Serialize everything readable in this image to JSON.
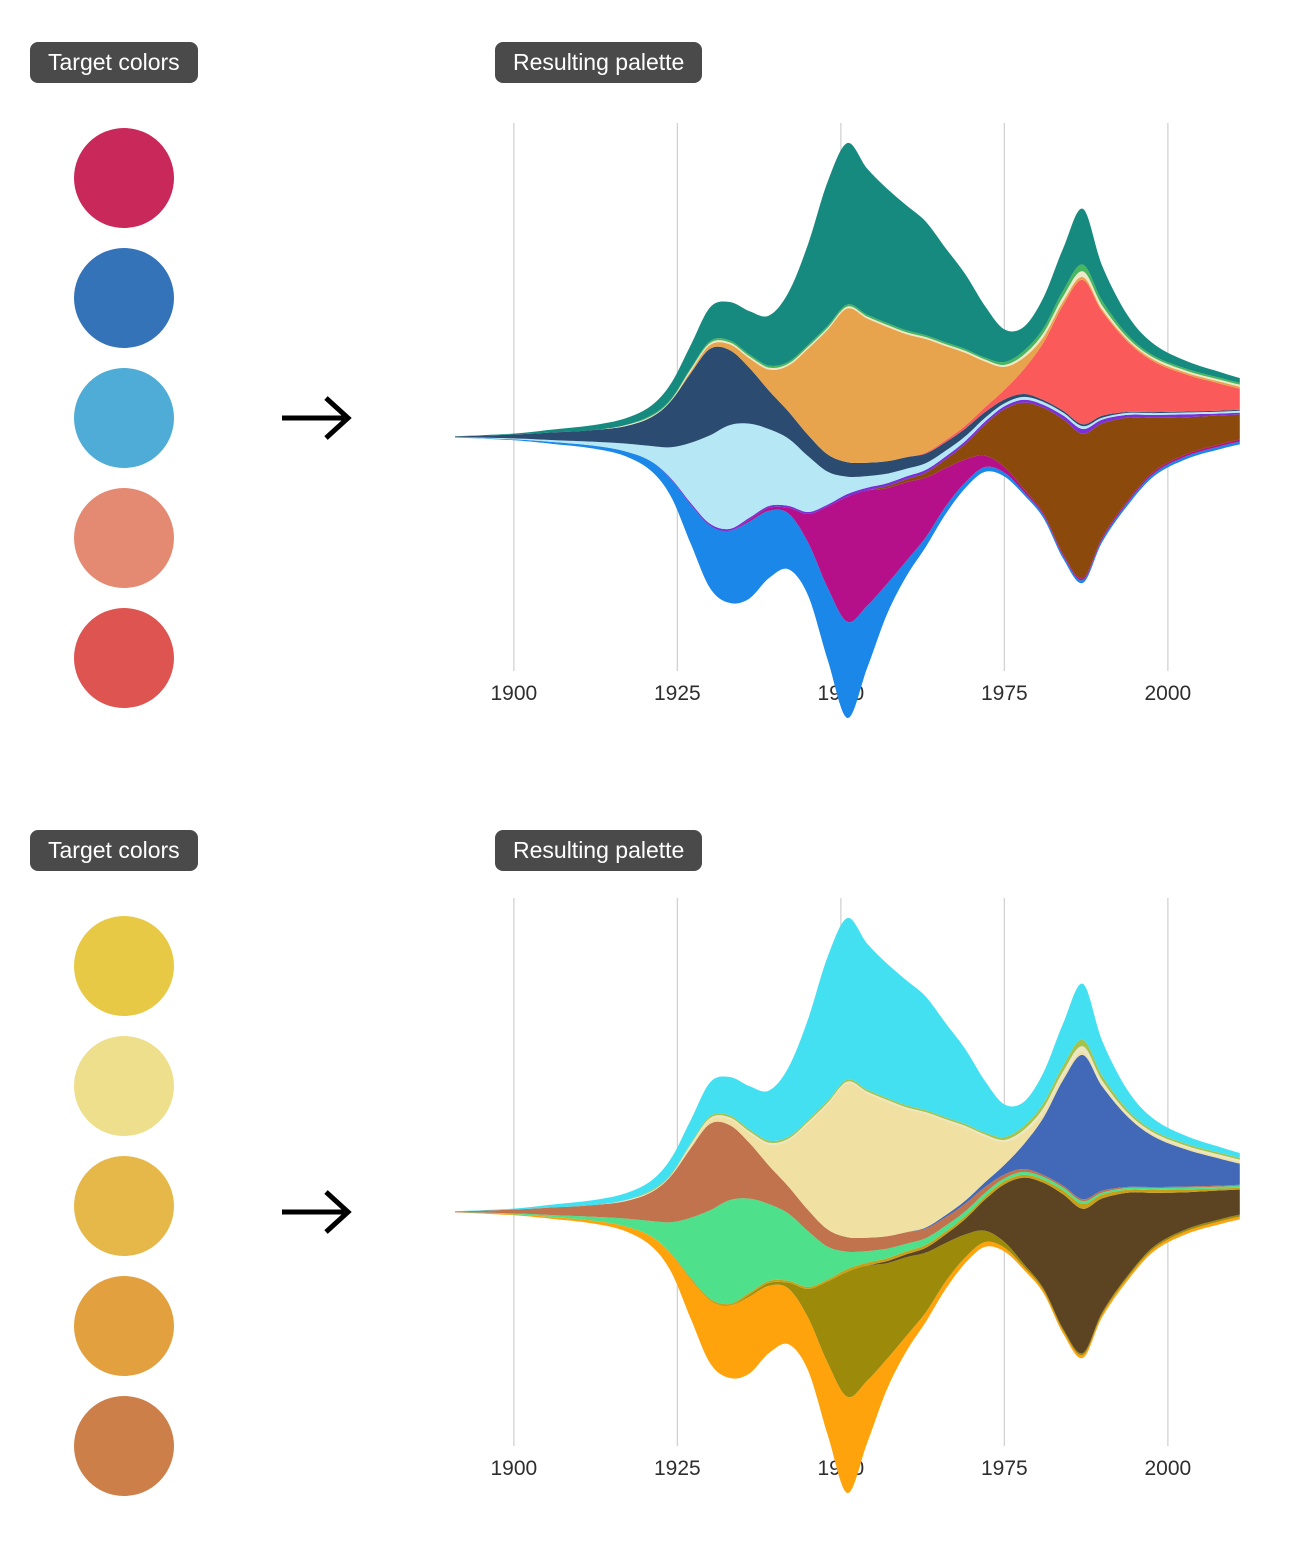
{
  "panels": [
    {
      "target_label": "Target colors",
      "result_label": "Resulting palette",
      "target_colors": [
        "#C8295A",
        "#3573B9",
        "#4FACD6",
        "#E48A72",
        "#DD5450"
      ]
    },
    {
      "target_label": "Target colors",
      "result_label": "Resulting palette",
      "target_colors": [
        "#E8C945",
        "#EEDF8C",
        "#E6B84A",
        "#E2A03F",
        "#CD7F4A"
      ]
    }
  ],
  "arrow_color": "#000000",
  "chart_data": {
    "type": "area",
    "variant": "streamgraph",
    "offset": "wiggle",
    "xlabel": "",
    "ylabel": "",
    "grid": true,
    "grid_color": "#d2d2d2",
    "tick_color": "#2e2e2e",
    "xticks": [
      1900,
      1925,
      1950,
      1975,
      2000
    ],
    "x_range": [
      1891,
      2011
    ],
    "x": [
      1891,
      1900,
      1906,
      1912,
      1917,
      1921,
      1924,
      1927,
      1930,
      1933,
      1936,
      1939,
      1942,
      1945,
      1948,
      1951,
      1954,
      1957,
      1960,
      1963,
      1966,
      1969,
      1972,
      1975,
      1978,
      1981,
      1984,
      1987,
      1990,
      1994,
      1998,
      2003,
      2008,
      2011
    ],
    "series": [
      {
        "name": "bright-blue",
        "colors": [
          "#1B87E8",
          "#FFA30D"
        ],
        "values": [
          0,
          1,
          2,
          3,
          5,
          10,
          18,
          40,
          65,
          75,
          80,
          70,
          58,
          55,
          75,
          100,
          65,
          32,
          16,
          10,
          8,
          6,
          5,
          4,
          3,
          3,
          3,
          3,
          3,
          3,
          3,
          3,
          3,
          3
        ]
      },
      {
        "name": "magenta",
        "colors": [
          "#B5108A",
          "#9C8B0B"
        ],
        "values": [
          0,
          0,
          0,
          0,
          0,
          0,
          0,
          0,
          0,
          0,
          2,
          3,
          6,
          30,
          85,
          130,
          120,
          100,
          82,
          62,
          40,
          24,
          12,
          6,
          3,
          2,
          2,
          2,
          2,
          2,
          2,
          2,
          2,
          2
        ]
      },
      {
        "name": "brown",
        "colors": [
          "#8B4A0C",
          "#5C4423"
        ],
        "values": [
          0,
          0,
          0,
          0,
          0,
          0,
          0,
          0,
          0,
          0,
          0,
          0,
          0,
          0,
          0,
          0,
          0,
          2,
          3,
          5,
          9,
          16,
          32,
          60,
          90,
          110,
          140,
          150,
          118,
          85,
          55,
          38,
          30,
          26
        ]
      },
      {
        "name": "violet",
        "colors": [
          "#7B2FD4",
          "#C8A018"
        ],
        "values": [
          0,
          0,
          0,
          0,
          0,
          0,
          1,
          2,
          2,
          2,
          2,
          2,
          2,
          2,
          2,
          3,
          3,
          3,
          3,
          3,
          3,
          3,
          3,
          3,
          3,
          3,
          4,
          5,
          4,
          3,
          3,
          3,
          2,
          2
        ]
      },
      {
        "name": "pale-cyan",
        "colors": [
          "#B5E7F4",
          "#4EE08A"
        ],
        "values": [
          0,
          1,
          2,
          4,
          8,
          16,
          32,
          62,
          92,
          108,
          98,
          80,
          70,
          58,
          34,
          18,
          12,
          10,
          8,
          7,
          6,
          5,
          4,
          3,
          3,
          3,
          3,
          3,
          2,
          2,
          2,
          2,
          2,
          2
        ]
      },
      {
        "name": "navy",
        "colors": [
          "#2B4B70",
          "#C0734C"
        ],
        "values": [
          1,
          4,
          8,
          12,
          18,
          30,
          48,
          72,
          90,
          78,
          58,
          40,
          28,
          22,
          18,
          15,
          14,
          13,
          12,
          10,
          9,
          8,
          6,
          4,
          3,
          2,
          2,
          2,
          2,
          1,
          1,
          1,
          1,
          1
        ]
      },
      {
        "name": "coral-red",
        "colors": [
          "#FB5A5A",
          "#4169B8"
        ],
        "values": [
          0,
          0,
          0,
          0,
          0,
          0,
          0,
          0,
          0,
          0,
          0,
          0,
          0,
          0,
          0,
          0,
          0,
          0,
          0,
          1,
          2,
          3,
          5,
          10,
          26,
          60,
          110,
          150,
          108,
          72,
          52,
          38,
          28,
          22
        ]
      },
      {
        "name": "amber-orange",
        "colors": [
          "#E8A44C",
          "#F0E0A2"
        ],
        "values": [
          0,
          0,
          0,
          0,
          0,
          0,
          0,
          2,
          4,
          6,
          10,
          22,
          48,
          90,
          130,
          160,
          150,
          140,
          128,
          118,
          98,
          76,
          48,
          24,
          12,
          6,
          4,
          3,
          2,
          2,
          2,
          2,
          2,
          2
        ]
      },
      {
        "name": "pale-yellow",
        "colors": [
          "#EEE7C8",
          "#EDE6C4"
        ],
        "values": [
          0,
          0,
          0,
          0,
          1,
          1,
          1,
          2,
          2,
          2,
          2,
          2,
          2,
          2,
          2,
          2,
          2,
          2,
          2,
          2,
          2,
          2,
          2,
          2,
          3,
          4,
          5,
          6,
          4,
          2,
          2,
          2,
          2,
          2
        ]
      },
      {
        "name": "green",
        "colors": [
          "#46B75E",
          "#A4C24C"
        ],
        "values": [
          0,
          0,
          0,
          0,
          0,
          1,
          1,
          1,
          2,
          2,
          2,
          2,
          2,
          2,
          2,
          2,
          2,
          2,
          2,
          2,
          2,
          2,
          2,
          3,
          4,
          5,
          6,
          7,
          5,
          3,
          2,
          2,
          2,
          2
        ]
      },
      {
        "name": "teal",
        "colors": [
          "#178A80",
          "#43E0F2"
        ],
        "values": [
          0,
          1,
          3,
          5,
          7,
          10,
          16,
          24,
          35,
          40,
          45,
          52,
          72,
          105,
          150,
          168,
          152,
          140,
          130,
          118,
          98,
          78,
          54,
          34,
          25,
          32,
          44,
          58,
          36,
          20,
          12,
          8,
          6,
          5
        ]
      }
    ]
  }
}
